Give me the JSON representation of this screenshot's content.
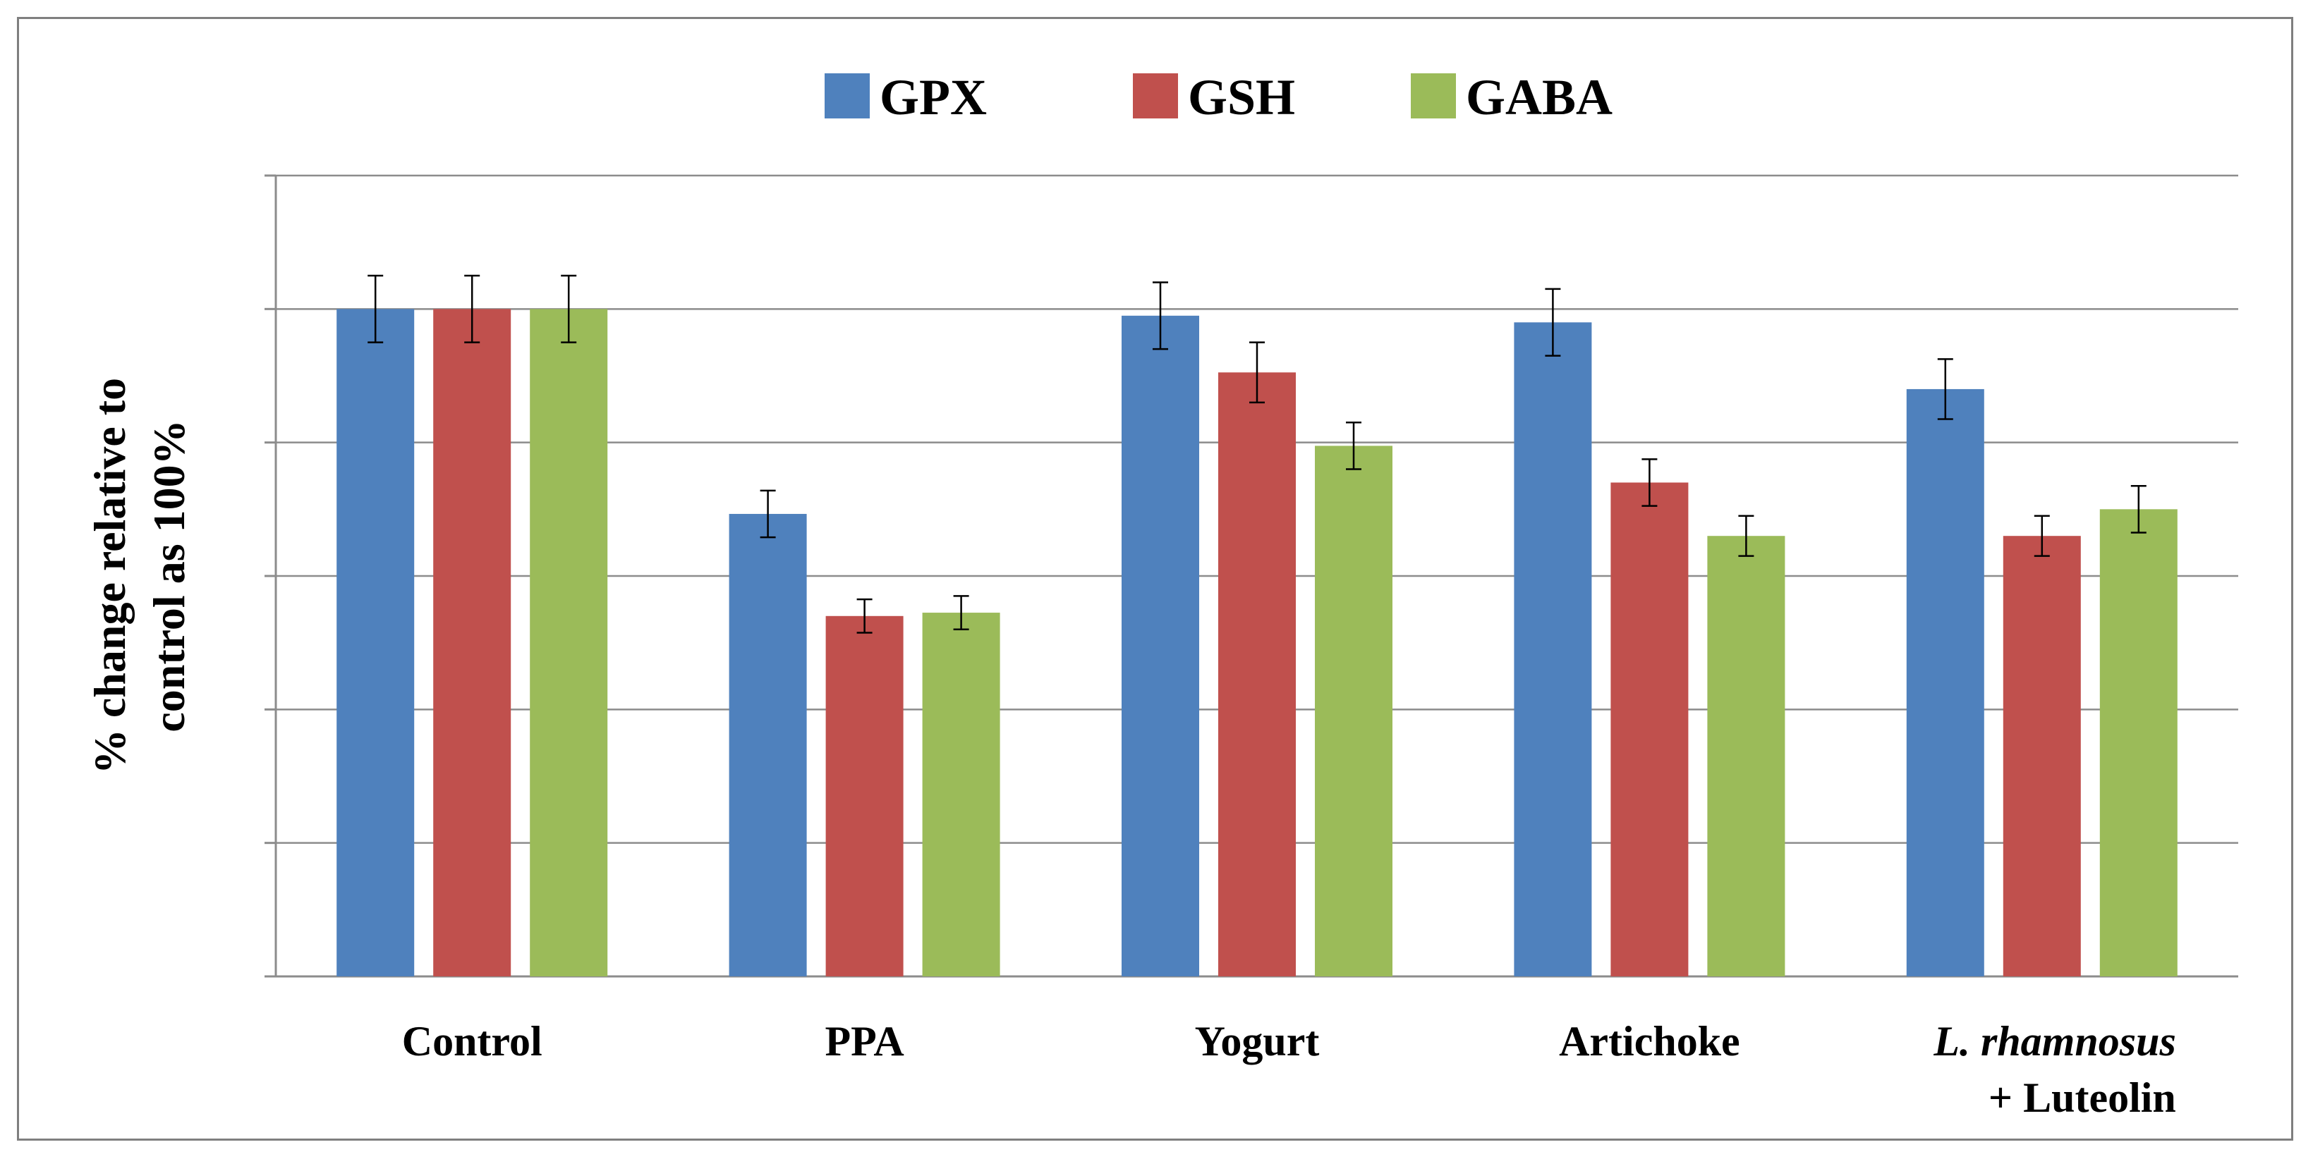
{
  "chart_data": {
    "type": "bar",
    "title": "",
    "xlabel": "",
    "ylabel": "% change relative to control as 100%",
    "ylabel_lines": [
      "% change relative to",
      "control as 100%"
    ],
    "ylim": [
      0,
      120
    ],
    "yticks": [
      0,
      20,
      40,
      60,
      80,
      100,
      120
    ],
    "ytick_labels_visible": false,
    "grid": true,
    "legend_position": "top-center",
    "categories": [
      "Control",
      "PPA",
      "Yogurt",
      "Artichoke",
      "L. rhamnosus + Luteolin"
    ],
    "category_labels": [
      {
        "lines": [
          {
            "text": "Control",
            "italic": false
          }
        ]
      },
      {
        "lines": [
          {
            "text": "PPA",
            "italic": false
          }
        ]
      },
      {
        "lines": [
          {
            "text": "Yogurt",
            "italic": false
          }
        ]
      },
      {
        "lines": [
          {
            "text": "Artichoke",
            "italic": false
          }
        ]
      },
      {
        "lines": [
          {
            "text": "L. rhamnosus",
            "italic": true
          },
          {
            "text": "+ Luteolin",
            "italic": false
          }
        ]
      }
    ],
    "series": [
      {
        "name": "GPX",
        "color": "#4f81bd",
        "values": [
          100,
          69.3,
          99,
          98,
          88
        ],
        "errors": [
          5,
          3.5,
          5,
          5,
          4.5
        ]
      },
      {
        "name": "GSH",
        "color": "#c0504d",
        "values": [
          100,
          54,
          90.5,
          74,
          66
        ],
        "errors": [
          5,
          2.5,
          4.5,
          3.5,
          3
        ]
      },
      {
        "name": "GABA",
        "color": "#9bbb59",
        "values": [
          100,
          54.5,
          79.5,
          66,
          70
        ],
        "errors": [
          5,
          2.5,
          3.5,
          3,
          3.5
        ]
      }
    ]
  }
}
